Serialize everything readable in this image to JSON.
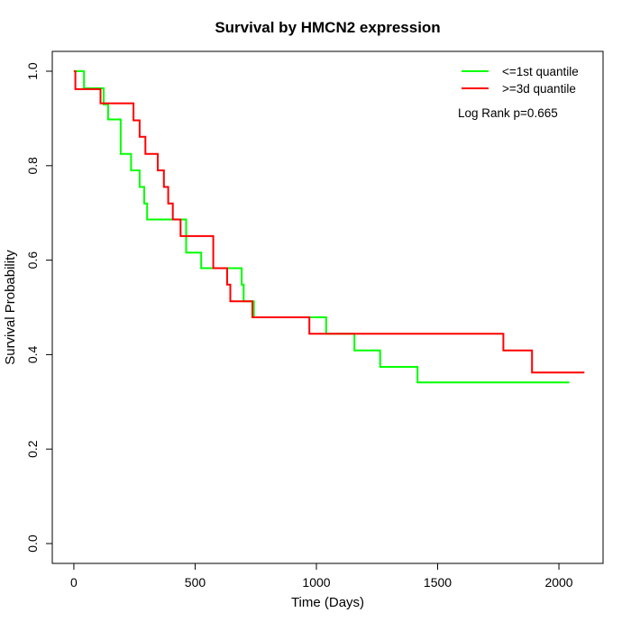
{
  "title": "Survival by HMCN2 expression",
  "colors": {
    "group_low": "#00ff00",
    "group_high": "#ff0000",
    "axis": "#000000",
    "background": "#ffffff"
  },
  "legend": {
    "entries": [
      {
        "label": "<=1st quantile",
        "color": "#00ff00"
      },
      {
        "label": ">=3d quantile",
        "color": "#ff0000"
      }
    ],
    "annotation": "Log Rank p=0.665"
  },
  "chart_data": {
    "type": "line",
    "subtype": "kaplan-meier-step",
    "title": "Survival by HMCN2 expression",
    "xlabel": "Time (Days)",
    "ylabel": "Survival Probability",
    "xlim": [
      -89,
      2182
    ],
    "ylim": [
      -0.042,
      1.042
    ],
    "xticks": [
      {
        "value": 0,
        "label": "0"
      },
      {
        "value": 500,
        "label": "500"
      },
      {
        "value": 1000,
        "label": "1000"
      },
      {
        "value": 1500,
        "label": "1500"
      },
      {
        "value": 2000,
        "label": "2000"
      }
    ],
    "yticks": [
      {
        "value": 0.0,
        "label": "0.0"
      },
      {
        "value": 0.2,
        "label": "0.2"
      },
      {
        "value": 0.4,
        "label": "0.4"
      },
      {
        "value": 0.6,
        "label": "0.6"
      },
      {
        "value": 0.8,
        "label": "0.8"
      },
      {
        "value": 1.0,
        "label": "1.0"
      }
    ],
    "grid": false,
    "legend_position": "top-right",
    "annotation": "Log Rank p=0.665",
    "series": [
      {
        "name": "<=1st quantile",
        "color": "#00ff00",
        "points": [
          [
            0,
            1.0
          ],
          [
            42,
            0.964
          ],
          [
            123,
            0.93
          ],
          [
            141,
            0.898
          ],
          [
            193,
            0.825
          ],
          [
            236,
            0.79
          ],
          [
            271,
            0.755
          ],
          [
            290,
            0.72
          ],
          [
            302,
            0.686
          ],
          [
            463,
            0.616
          ],
          [
            525,
            0.583
          ],
          [
            692,
            0.548
          ],
          [
            700,
            0.513
          ],
          [
            742,
            0.479
          ],
          [
            1040,
            0.444
          ],
          [
            1157,
            0.409
          ],
          [
            1263,
            0.374
          ],
          [
            1417,
            0.341
          ],
          [
            2043,
            0.341
          ]
        ]
      },
      {
        "name": ">=3d quantile",
        "color": "#ff0000",
        "points": [
          [
            0,
            1.0
          ],
          [
            6,
            0.962
          ],
          [
            110,
            0.932
          ],
          [
            246,
            0.896
          ],
          [
            271,
            0.861
          ],
          [
            295,
            0.825
          ],
          [
            346,
            0.79
          ],
          [
            371,
            0.755
          ],
          [
            389,
            0.72
          ],
          [
            408,
            0.686
          ],
          [
            440,
            0.651
          ],
          [
            575,
            0.583
          ],
          [
            632,
            0.548
          ],
          [
            645,
            0.513
          ],
          [
            736,
            0.479
          ],
          [
            971,
            0.444
          ],
          [
            1771,
            0.409
          ],
          [
            1889,
            0.362
          ],
          [
            2105,
            0.362
          ]
        ]
      }
    ]
  }
}
